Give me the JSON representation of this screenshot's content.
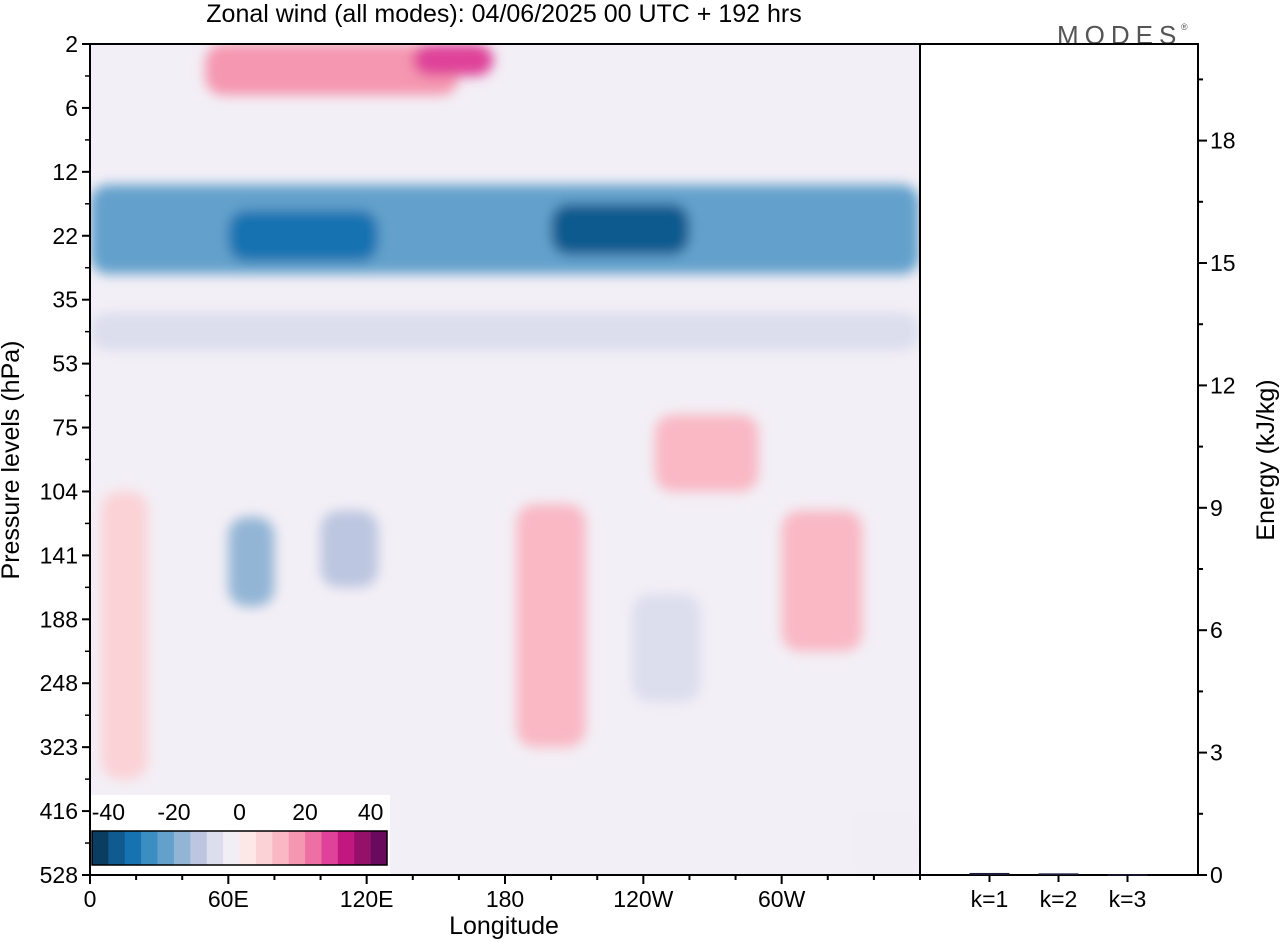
{
  "watermark": "MODES",
  "watermark_mark": "®",
  "chart_data": [
    {
      "type": "heatmap",
      "title": "Zonal wind (all modes):  04/06/2025  00 UTC  + 192 hrs",
      "xlabel": "Longitude",
      "ylabel": "Pressure levels (hPa)",
      "x_ticks": [
        "0",
        "60E",
        "120E",
        "180",
        "120W",
        "60W"
      ],
      "x_tick_degrees": [
        0,
        60,
        120,
        180,
        240,
        300
      ],
      "xlim": [
        0,
        360
      ],
      "y_ticks": [
        "2",
        "6",
        "12",
        "22",
        "35",
        "53",
        "75",
        "104",
        "141",
        "188",
        "248",
        "323",
        "416",
        "528"
      ],
      "y_scale": "level index (top = 2 hPa, bottom = 528 hPa)",
      "colorbar": {
        "labels": [
          "-40",
          "-20",
          "0",
          "20",
          "40"
        ],
        "label_values": [
          -40,
          -20,
          0,
          20,
          40
        ],
        "range": [
          -45,
          45
        ],
        "step": 5,
        "colors": [
          "#0b3d62",
          "#0f5a8e",
          "#1772b1",
          "#3b8ec2",
          "#63a1cc",
          "#93b5d5",
          "#bcc6e0",
          "#dcdeee",
          "#f1eef6",
          "#fde8e8",
          "#fbd2d6",
          "#f9b8c4",
          "#f597b0",
          "#ee6fa4",
          "#df4299",
          "#c2177e",
          "#951068",
          "#6a0a5e"
        ]
      },
      "features": [
        {
          "lon": [
            0,
            360
          ],
          "level": [
            2.2,
            3.6
          ],
          "value": -25
        },
        {
          "lon": [
            200,
            260
          ],
          "level": [
            2.5,
            3.3
          ],
          "value": -38
        },
        {
          "lon": [
            60,
            125
          ],
          "level": [
            2.6,
            3.4
          ],
          "value": -32
        },
        {
          "lon": [
            0,
            360
          ],
          "level": [
            4.2,
            4.8
          ],
          "value": -8
        },
        {
          "lon": [
            50,
            160
          ],
          "level": [
            0,
            0.8
          ],
          "value": 18
        },
        {
          "lon": [
            140,
            175
          ],
          "level": [
            0,
            0.5
          ],
          "value": 28
        },
        {
          "lon": [
            60,
            80
          ],
          "level": [
            7.4,
            8.8
          ],
          "value": -18
        },
        {
          "lon": [
            100,
            125
          ],
          "level": [
            7.3,
            8.5
          ],
          "value": -14
        },
        {
          "lon": [
            185,
            215
          ],
          "level": [
            7.2,
            11.0
          ],
          "value": 14
        },
        {
          "lon": [
            245,
            290
          ],
          "level": [
            5.8,
            7.0
          ],
          "value": 10
        },
        {
          "lon": [
            300,
            335
          ],
          "level": [
            7.3,
            9.5
          ],
          "value": 13
        },
        {
          "lon": [
            235,
            265
          ],
          "level": [
            8.6,
            10.3
          ],
          "value": -6
        },
        {
          "lon": [
            5,
            25
          ],
          "level": [
            7.0,
            11.5
          ],
          "value": 9
        },
        {
          "lon": [
            330,
            360
          ],
          "level": [
            12.0,
            13.0
          ],
          "value": -5
        }
      ]
    },
    {
      "type": "bar",
      "ylabel": "Energy (kJ/kg)",
      "categories": [
        "k=1",
        "k=2",
        "k=3"
      ],
      "values": [
        0.05,
        0.04,
        0.02
      ],
      "ylim": [
        0,
        20
      ],
      "y_ticks": [
        "0",
        "3",
        "6",
        "9",
        "12",
        "15",
        "18"
      ],
      "y_tick_values": [
        0,
        3,
        6,
        9,
        12,
        15,
        18
      ],
      "bar_color": "#1a1a3a"
    }
  ]
}
